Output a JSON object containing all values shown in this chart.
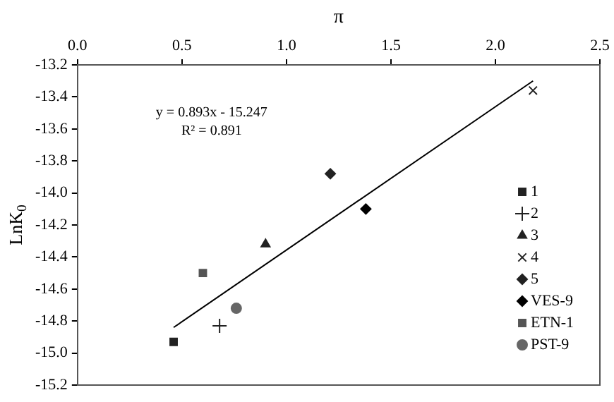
{
  "chart_data": {
    "type": "scatter",
    "xlabel": "π",
    "ylabel": "LnK$_{0}$",
    "xlim": [
      0,
      2.5
    ],
    "xticks": [
      {
        "value": 0,
        "label": "0.0"
      },
      0.5,
      {
        "value": 1,
        "label": "1.0"
      },
      1.5,
      {
        "value": 2,
        "label": "2.0"
      },
      2.5
    ],
    "ylim": [
      -15.2,
      -13.2
    ],
    "yticks": [
      {
        "value": -15.2,
        "label": "-15.2"
      },
      {
        "value": -15,
        "label": "-15.0"
      },
      {
        "value": -14.8,
        "label": "-14.8"
      },
      {
        "value": -14.6,
        "label": "-14.6"
      },
      {
        "value": -14.4,
        "label": "-14.4"
      },
      {
        "value": -14.2,
        "label": "-14.2"
      },
      {
        "value": -14,
        "label": "-14.0"
      },
      {
        "value": -13.8,
        "label": "-13.8"
      },
      {
        "value": -13.6,
        "label": "-13.6"
      },
      {
        "value": -13.4,
        "label": "-13.4"
      },
      {
        "value": -13.2,
        "label": "-13.2"
      }
    ],
    "grid": false,
    "legend": "right",
    "annotations": [
      "y = 0.893x - 15.247",
      "R² = 0.891"
    ],
    "series": [
      {
        "name": "1",
        "color": "#222222",
        "marker": "square",
        "x": [
          0.46
        ],
        "values": [
          -14.93
        ]
      },
      {
        "name": "2",
        "color": "#222222",
        "marker": "cross",
        "x": [
          0.68
        ],
        "values": [
          -14.83
        ]
      },
      {
        "name": "3",
        "color": "#222222",
        "marker": "triangle",
        "x": [
          0.9
        ],
        "values": [
          -14.32
        ]
      },
      {
        "name": "4",
        "color": "#222222",
        "marker": "x",
        "x": [
          2.18
        ],
        "values": [
          -13.36
        ]
      },
      {
        "name": "5",
        "color": "#222222",
        "marker": "diamond",
        "x": [
          1.21
        ],
        "values": [
          -13.88
        ]
      },
      {
        "name": "VES-9",
        "color": "#000000",
        "marker": "diamond",
        "x": [
          1.38
        ],
        "values": [
          -14.1
        ]
      },
      {
        "name": "ETN-1",
        "color": "#555555",
        "marker": "square",
        "x": [
          0.6
        ],
        "values": [
          -14.5
        ]
      },
      {
        "name": "PST-9",
        "color": "#666666",
        "marker": "circle",
        "x": [
          0.76
        ],
        "values": [
          -14.72
        ]
      },
      {
        "type": "line",
        "color": "#000000",
        "marker": "none",
        "x": [
          0.46,
          2.18
        ],
        "values": [
          -14.84,
          -13.3
        ]
      }
    ]
  }
}
